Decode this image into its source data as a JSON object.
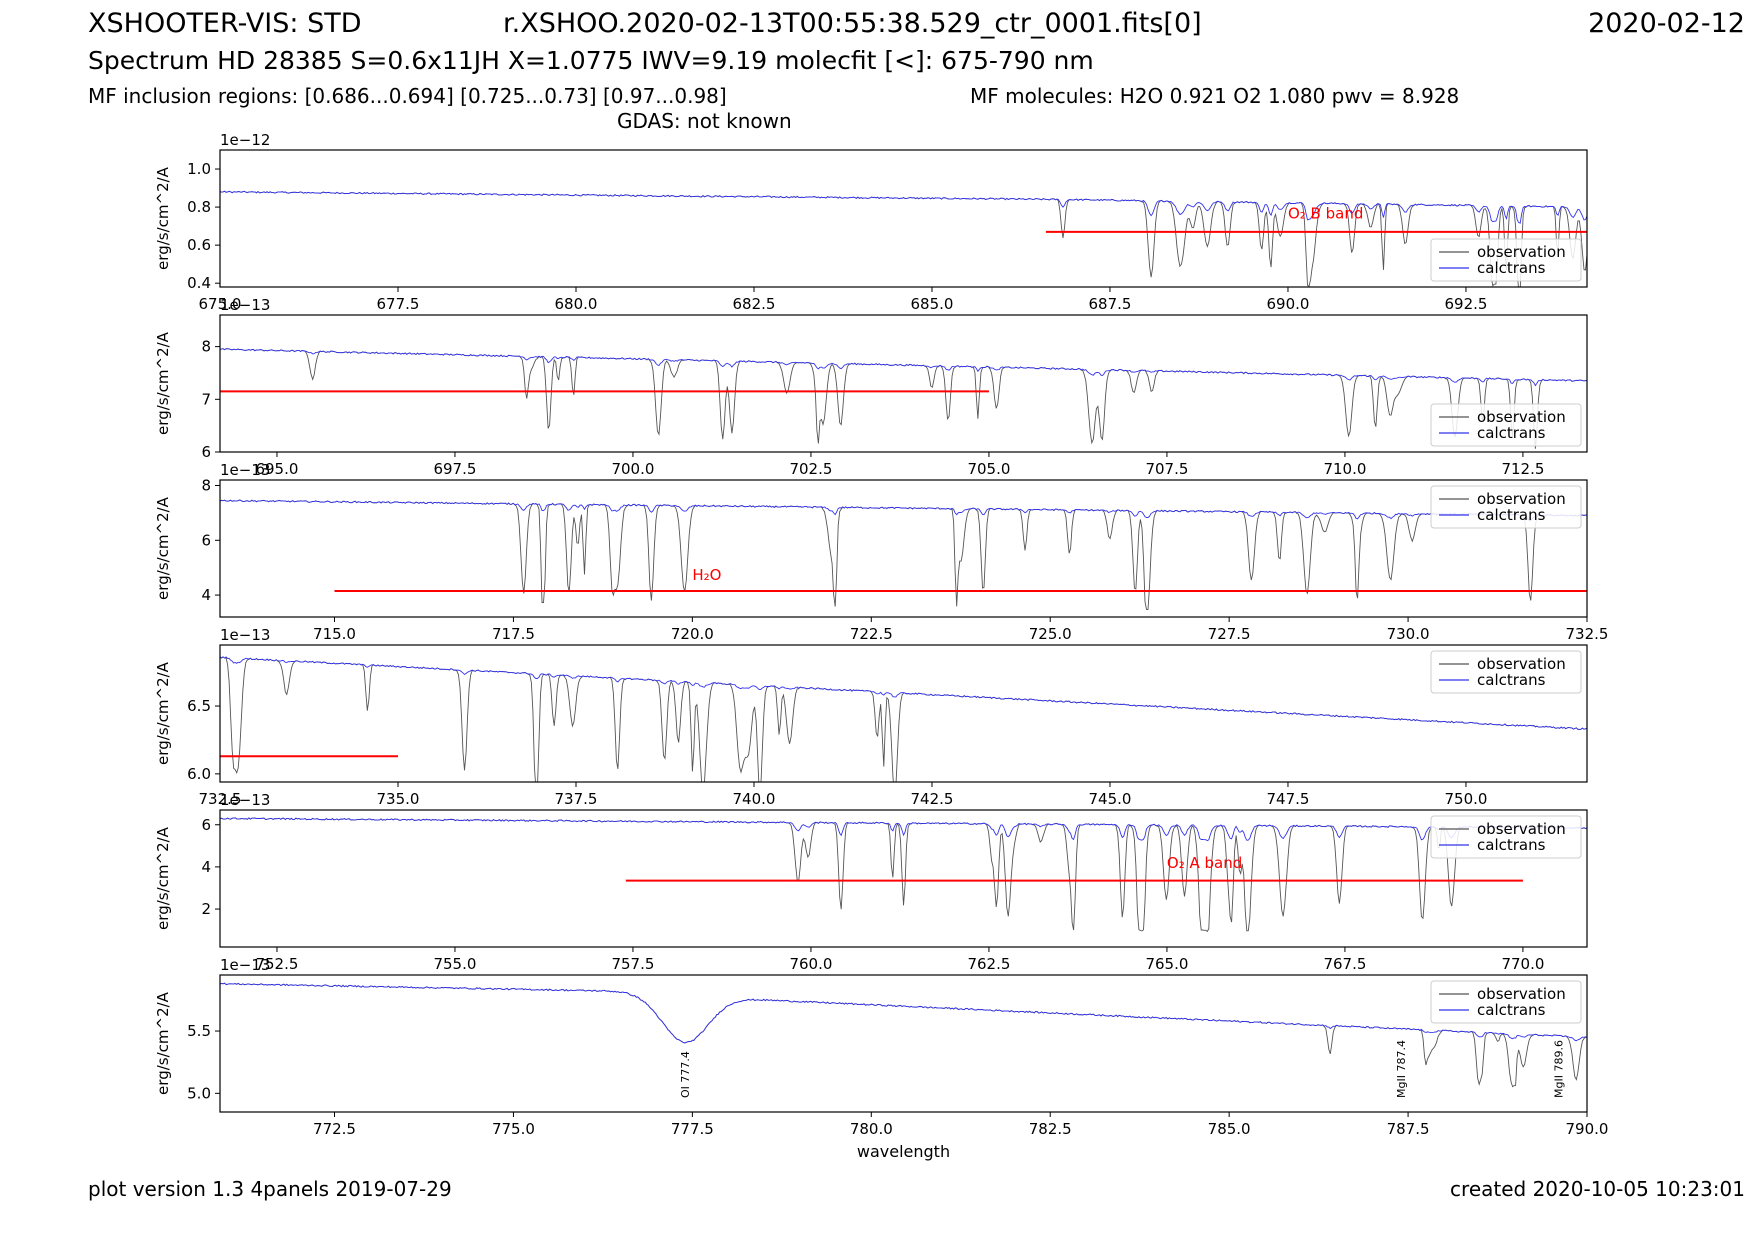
{
  "header": {
    "instrument": "XSHOOTER-VIS: STD",
    "filename": "r.XSHOO.2020-02-13T00:55:38.529_ctr_0001.fits[0]",
    "date": "2020-02-12",
    "spectrum_line": "Spectrum HD 28385 S=0.6x11JH X=1.0775 IWV=9.19 molecfit [<]: 675-790 nm",
    "inclusion_regions": "MF inclusion regions:  [0.686...0.694]  [0.725...0.73]  [0.97...0.98]",
    "molecules": "MF molecules: H2O 0.921 O2 1.080 pwv = 8.928",
    "gdas": "GDAS: not known"
  },
  "footer": {
    "left": "plot version 1.3 4panels  2019-07-29",
    "right": "created 2020-10-05 10:23:01"
  },
  "colors": {
    "observation": "#555555",
    "calctrans": "#3333ee",
    "inclusion": "#ff0000"
  },
  "chart_data": [
    {
      "type": "line",
      "xlim": [
        675.0,
        694.2
      ],
      "ylim": [
        0.38,
        1.1
      ],
      "scale_label": "1e−12",
      "ylabel": "erg/s/cm^2/A",
      "xticks": [
        "677.5",
        "680.0",
        "682.5",
        "685.0",
        "687.5",
        "690.0",
        "692.5"
      ],
      "xtick_values": [
        677.5,
        680.0,
        682.5,
        685.0,
        687.5,
        690.0,
        692.5
      ],
      "yticks": [
        "0.4",
        "0.6",
        "0.8",
        "1.0"
      ],
      "ytick_values": [
        0.4,
        0.6,
        0.8,
        1.0
      ],
      "corner_label": "675.0",
      "legend": [
        "observation",
        "calctrans"
      ],
      "legend_position": "lower-right",
      "inclusion_line": {
        "x": [
          686.6,
          694.2
        ],
        "y": 0.67
      },
      "annotation": {
        "text": "O₂ B band",
        "x": 690.0,
        "y": 0.74
      },
      "continuum": [
        [
          675.0,
          0.88
        ],
        [
          686.8,
          0.84
        ],
        [
          694.2,
          0.8
        ]
      ],
      "absorption": {
        "start": 686.8,
        "end": 694.2,
        "density": 3.5,
        "max_depth": 0.44,
        "calc_depth": 0.25
      }
    },
    {
      "type": "line",
      "xlim": [
        694.2,
        713.4
      ],
      "ylim": [
        6.0,
        8.6
      ],
      "scale_label": "1e−13",
      "ylabel": "erg/s/cm^2/A",
      "xticks": [
        "695.0",
        "697.5",
        "700.0",
        "702.5",
        "705.0",
        "707.5",
        "710.0",
        "712.5"
      ],
      "xtick_values": [
        695.0,
        697.5,
        700.0,
        702.5,
        705.0,
        707.5,
        710.0,
        712.5
      ],
      "yticks": [
        "6",
        "7",
        "8"
      ],
      "ytick_values": [
        6,
        7,
        8
      ],
      "legend": [
        "observation",
        "calctrans"
      ],
      "legend_position": "lower-right",
      "inclusion_line": {
        "x": [
          694.2,
          705.0
        ],
        "y": 7.15
      },
      "continuum": [
        [
          694.2,
          7.95
        ],
        [
          713.4,
          7.35
        ]
      ],
      "absorption": {
        "start": 694.2,
        "end": 713.4,
        "density": 1.6,
        "max_depth": 1.6,
        "calc_depth": 0.35
      }
    },
    {
      "type": "line",
      "xlim": [
        713.4,
        732.5
      ],
      "ylim": [
        3.2,
        8.2
      ],
      "scale_label": "1e−13",
      "ylabel": "erg/s/cm^2/A",
      "xticks": [
        "715.0",
        "717.5",
        "720.0",
        "722.5",
        "725.0",
        "727.5",
        "730.0",
        "732.5"
      ],
      "xtick_values": [
        715.0,
        717.5,
        720.0,
        722.5,
        725.0,
        727.5,
        730.0,
        732.5
      ],
      "yticks": [
        "4",
        "6",
        "8"
      ],
      "ytick_values": [
        4,
        6,
        8
      ],
      "legend": [
        "observation",
        "calctrans"
      ],
      "legend_position": "upper-right",
      "inclusion_line": {
        "x": [
          715.0,
          732.5
        ],
        "y": 4.15
      },
      "annotation": {
        "text": "H₂O",
        "x": 720.0,
        "y": 4.55
      },
      "continuum": [
        [
          713.4,
          7.45
        ],
        [
          732.5,
          6.9
        ]
      ],
      "absorption": {
        "start": 716.5,
        "end": 732.0,
        "density": 2.0,
        "max_depth": 3.6,
        "calc_depth": 0.7
      }
    },
    {
      "type": "line",
      "xlim": [
        732.5,
        751.7
      ],
      "ylim": [
        5.94,
        6.95
      ],
      "scale_label": "1e−13",
      "ylabel": "erg/s/cm^2/A",
      "xticks": [
        "735.0",
        "737.5",
        "740.0",
        "742.5",
        "745.0",
        "747.5",
        "750.0"
      ],
      "xtick_values": [
        735.0,
        737.5,
        740.0,
        742.5,
        745.0,
        747.5,
        750.0
      ],
      "yticks": [
        "6.0",
        "6.5"
      ],
      "ytick_values": [
        6.0,
        6.5
      ],
      "corner_label": "732.5",
      "legend": [
        "observation",
        "calctrans"
      ],
      "legend_position": "upper-right",
      "inclusion_line": {
        "x": [
          732.5,
          735.0
        ],
        "y": 6.13
      },
      "continuum": [
        [
          732.5,
          6.86
        ],
        [
          751.7,
          6.33
        ]
      ],
      "absorption": {
        "start": 732.5,
        "end": 742.5,
        "density": 2.2,
        "max_depth": 0.85,
        "calc_depth": 0.1
      }
    },
    {
      "type": "line",
      "xlim": [
        751.7,
        770.9
      ],
      "ylim": [
        0.2,
        6.7
      ],
      "scale_label": "1e−13",
      "ylabel": "erg/s/cm^2/A",
      "xticks": [
        "752.5",
        "755.0",
        "757.5",
        "760.0",
        "762.5",
        "765.0",
        "767.5",
        "770.0"
      ],
      "xtick_values": [
        752.5,
        755.0,
        757.5,
        760.0,
        762.5,
        765.0,
        767.5,
        770.0
      ],
      "yticks": [
        "2",
        "4",
        "6"
      ],
      "ytick_values": [
        2,
        4,
        6
      ],
      "legend": [
        "observation",
        "calctrans"
      ],
      "legend_position": "upper-right",
      "inclusion_line": {
        "x": [
          757.4,
          770.0
        ],
        "y": 3.35
      },
      "annotation": {
        "text": "O₂ A band",
        "x": 765.0,
        "y": 3.95
      },
      "continuum": [
        [
          751.7,
          6.3
        ],
        [
          770.9,
          5.85
        ]
      ],
      "absorption": {
        "start": 759.6,
        "end": 769.5,
        "density": 3.0,
        "max_depth": 5.0,
        "calc_depth": 2.0
      }
    },
    {
      "type": "line",
      "xlim": [
        770.9,
        790.0
      ],
      "ylim": [
        4.85,
        5.95
      ],
      "scale_label": "1e−13",
      "ylabel": "erg/s/cm^2/A",
      "xlabel": "wavelength",
      "xticks": [
        "772.5",
        "775.0",
        "777.5",
        "780.0",
        "782.5",
        "785.0",
        "787.5",
        "790.0"
      ],
      "xtick_values": [
        772.5,
        775.0,
        777.5,
        780.0,
        782.5,
        785.0,
        787.5,
        790.0
      ],
      "yticks": [
        "5.0",
        "5.5"
      ],
      "ytick_values": [
        5.0,
        5.5
      ],
      "legend": [
        "observation",
        "calctrans"
      ],
      "legend_position": "upper-right",
      "continuum": [
        [
          770.9,
          5.88
        ],
        [
          776.5,
          5.82
        ],
        [
          778.5,
          5.75
        ],
        [
          790.0,
          5.45
        ]
      ],
      "broad_line": {
        "center": 777.4,
        "width": 0.45,
        "depth": 0.38
      },
      "absorption": {
        "start": 786.3,
        "end": 790.0,
        "density": 3.0,
        "max_depth": 0.42,
        "calc_depth": 0.1
      },
      "line_labels": [
        {
          "text": "OI 777.4",
          "x": 777.4
        },
        {
          "text": "MgII 787.4",
          "x": 787.4
        },
        {
          "text": "MgII 789.6",
          "x": 789.6
        }
      ]
    }
  ]
}
